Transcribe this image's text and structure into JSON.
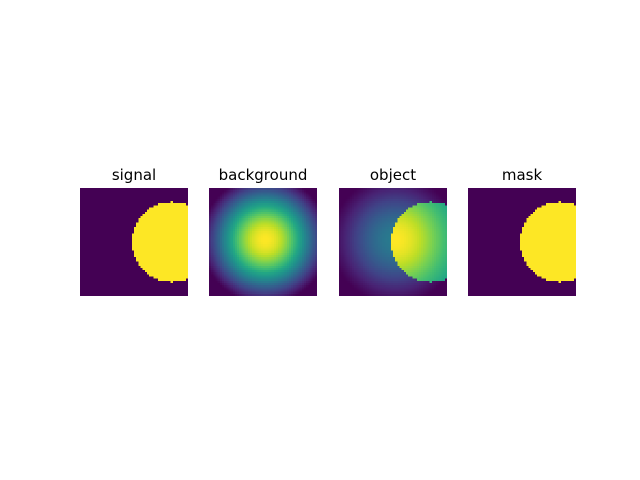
{
  "chart_data": {
    "type": "heatmap",
    "colormap": "viridis",
    "grid": false,
    "axes_visible": false,
    "panels": [
      {
        "title": "signal",
        "kind": "disc",
        "disc_center": [
          0.85,
          0.5
        ],
        "disc_radius": 0.37,
        "value_range": [
          0,
          1
        ]
      },
      {
        "title": "background",
        "kind": "gaussian",
        "gaussian_center": [
          0.52,
          0.48
        ],
        "value_range": [
          0,
          1
        ]
      },
      {
        "title": "object",
        "kind": "gaussian_plus_disc",
        "gaussian_center": [
          0.52,
          0.48
        ],
        "disc_center": [
          0.85,
          0.5
        ],
        "disc_radius": 0.37,
        "value_range": [
          0,
          2
        ]
      },
      {
        "title": "mask",
        "kind": "disc",
        "disc_center": [
          0.85,
          0.5
        ],
        "disc_radius": 0.37,
        "value_range": [
          0,
          1
        ]
      }
    ]
  }
}
